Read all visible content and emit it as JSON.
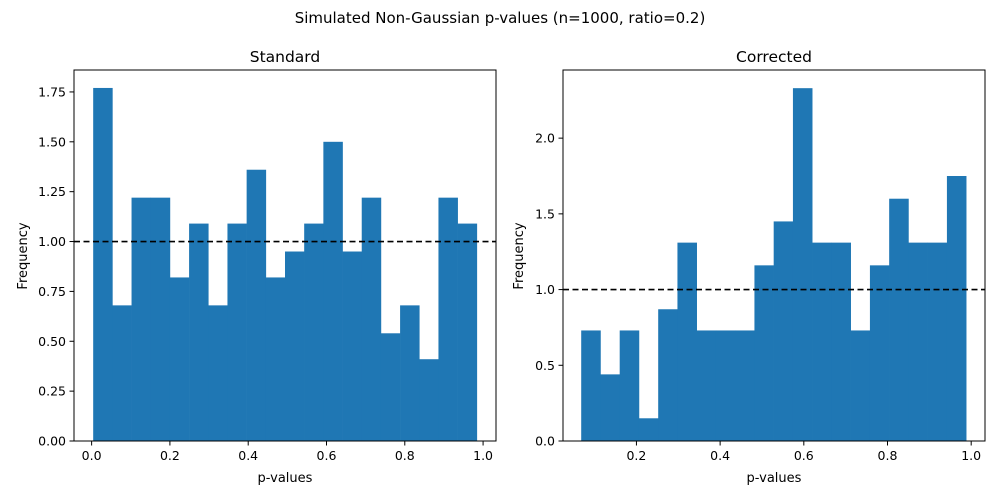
{
  "figure": {
    "suptitle": "Simulated Non-Gaussian p-values (n=1000, ratio=0.2)"
  },
  "chart_data": [
    {
      "type": "bar",
      "title": "Standard",
      "xlabel": "p-values",
      "ylabel": "Frequency",
      "xlim": [
        -0.045,
        1.033
      ],
      "ylim": [
        0,
        1.86
      ],
      "xticks": [
        0.0,
        0.2,
        0.4,
        0.6,
        0.8,
        1.0
      ],
      "xtick_labels": [
        "0.0",
        "0.2",
        "0.4",
        "0.6",
        "0.8",
        "1.0"
      ],
      "yticks": [
        0.0,
        0.25,
        0.5,
        0.75,
        1.0,
        1.25,
        1.5,
        1.75
      ],
      "ytick_labels": [
        "0.00",
        "0.25",
        "0.50",
        "0.75",
        "1.00",
        "1.25",
        "1.50",
        "1.75"
      ],
      "bin_start": 0.004,
      "bin_width": 0.049,
      "values": [
        1.77,
        0.68,
        1.22,
        1.22,
        0.82,
        1.09,
        0.68,
        1.09,
        1.36,
        0.82,
        0.95,
        1.09,
        1.5,
        0.95,
        1.22,
        0.54,
        0.68,
        0.41,
        1.22,
        1.09
      ],
      "reference_line": 1.0,
      "bar_color": "#1f77b4",
      "grid": false
    },
    {
      "type": "bar",
      "title": "Corrected",
      "xlabel": "p-values",
      "ylabel": "Frequency",
      "xlim": [
        0.0245,
        1.033
      ],
      "ylim": [
        0,
        2.45
      ],
      "xticks": [
        0.2,
        0.4,
        0.6,
        0.8,
        1.0
      ],
      "xtick_labels": [
        "0.2",
        "0.4",
        "0.6",
        "0.8",
        "1.0"
      ],
      "yticks": [
        0.0,
        0.5,
        1.0,
        1.5,
        2.0
      ],
      "ytick_labels": [
        "0.0",
        "0.5",
        "1.0",
        "1.5",
        "2.0"
      ],
      "bin_start": 0.068,
      "bin_width": 0.046,
      "values": [
        0.73,
        0.44,
        0.73,
        0.15,
        0.87,
        1.31,
        0.73,
        0.73,
        0.73,
        1.16,
        1.45,
        2.33,
        1.31,
        1.31,
        0.73,
        1.16,
        1.6,
        1.31,
        1.31,
        1.75
      ],
      "reference_line": 1.0,
      "bar_color": "#1f77b4",
      "grid": false
    }
  ]
}
